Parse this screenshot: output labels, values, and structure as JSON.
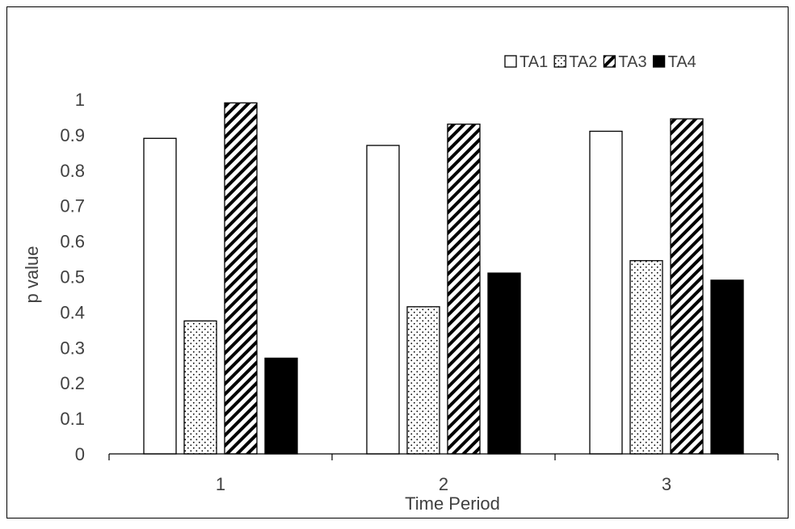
{
  "chart_data": {
    "type": "bar",
    "title": "",
    "xlabel": "Time Period",
    "ylabel": "p value",
    "categories": [
      "1",
      "2",
      "3"
    ],
    "ylim": [
      0,
      1
    ],
    "yticks": [
      "0",
      "0.1",
      "0.2",
      "0.3",
      "0.4",
      "0.5",
      "0.6",
      "0.7",
      "0.8",
      "0.9",
      "1"
    ],
    "grid": false,
    "legend_position": "top-right",
    "series": [
      {
        "name": "TA1",
        "pattern": "white",
        "values": [
          0.89,
          0.87,
          0.91
        ]
      },
      {
        "name": "TA2",
        "pattern": "dots",
        "values": [
          0.375,
          0.415,
          0.545
        ]
      },
      {
        "name": "TA3",
        "pattern": "diagonal-hatch",
        "values": [
          0.99,
          0.93,
          0.945
        ]
      },
      {
        "name": "TA4",
        "pattern": "solid-black",
        "values": [
          0.27,
          0.51,
          0.49
        ]
      }
    ],
    "colors": {
      "frame": "#000000",
      "axis": "#000000",
      "text": "#404040",
      "bar_outline": "#000000"
    }
  }
}
